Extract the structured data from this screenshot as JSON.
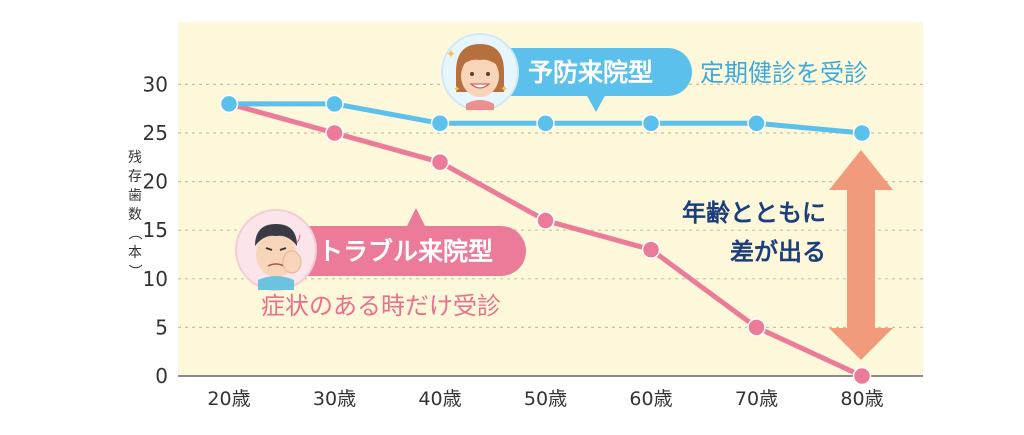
{
  "chart_data": {
    "type": "line",
    "ylabel": "残存歯数（本）",
    "categories": [
      "20歳",
      "30歳",
      "40歳",
      "50歳",
      "60歳",
      "70歳",
      "80歳"
    ],
    "ylim": [
      0,
      35
    ],
    "yticks": [
      0,
      5,
      10,
      15,
      20,
      25,
      30
    ],
    "grid": true,
    "series": [
      {
        "name": "予防来院型",
        "note": "定期健診を受診",
        "color": "#5bc0eb",
        "values": [
          28,
          28,
          26,
          26,
          26,
          26,
          25
        ]
      },
      {
        "name": "トラブル来院型",
        "note": "症状のある時だけ受診",
        "color": "#ec7b99",
        "values": [
          28,
          25,
          22,
          16,
          13,
          5,
          0
        ]
      }
    ],
    "annotation": {
      "lines": [
        "年齢とともに",
        "差が出る"
      ],
      "arrow_color": "#f29b7c"
    }
  },
  "colors": {
    "plot_bg": "#fcf8d9",
    "grid": "#c9c2a0"
  },
  "icons": {
    "smiling_face": "woman-face-icon",
    "troubled_face": "man-toothache-icon"
  }
}
